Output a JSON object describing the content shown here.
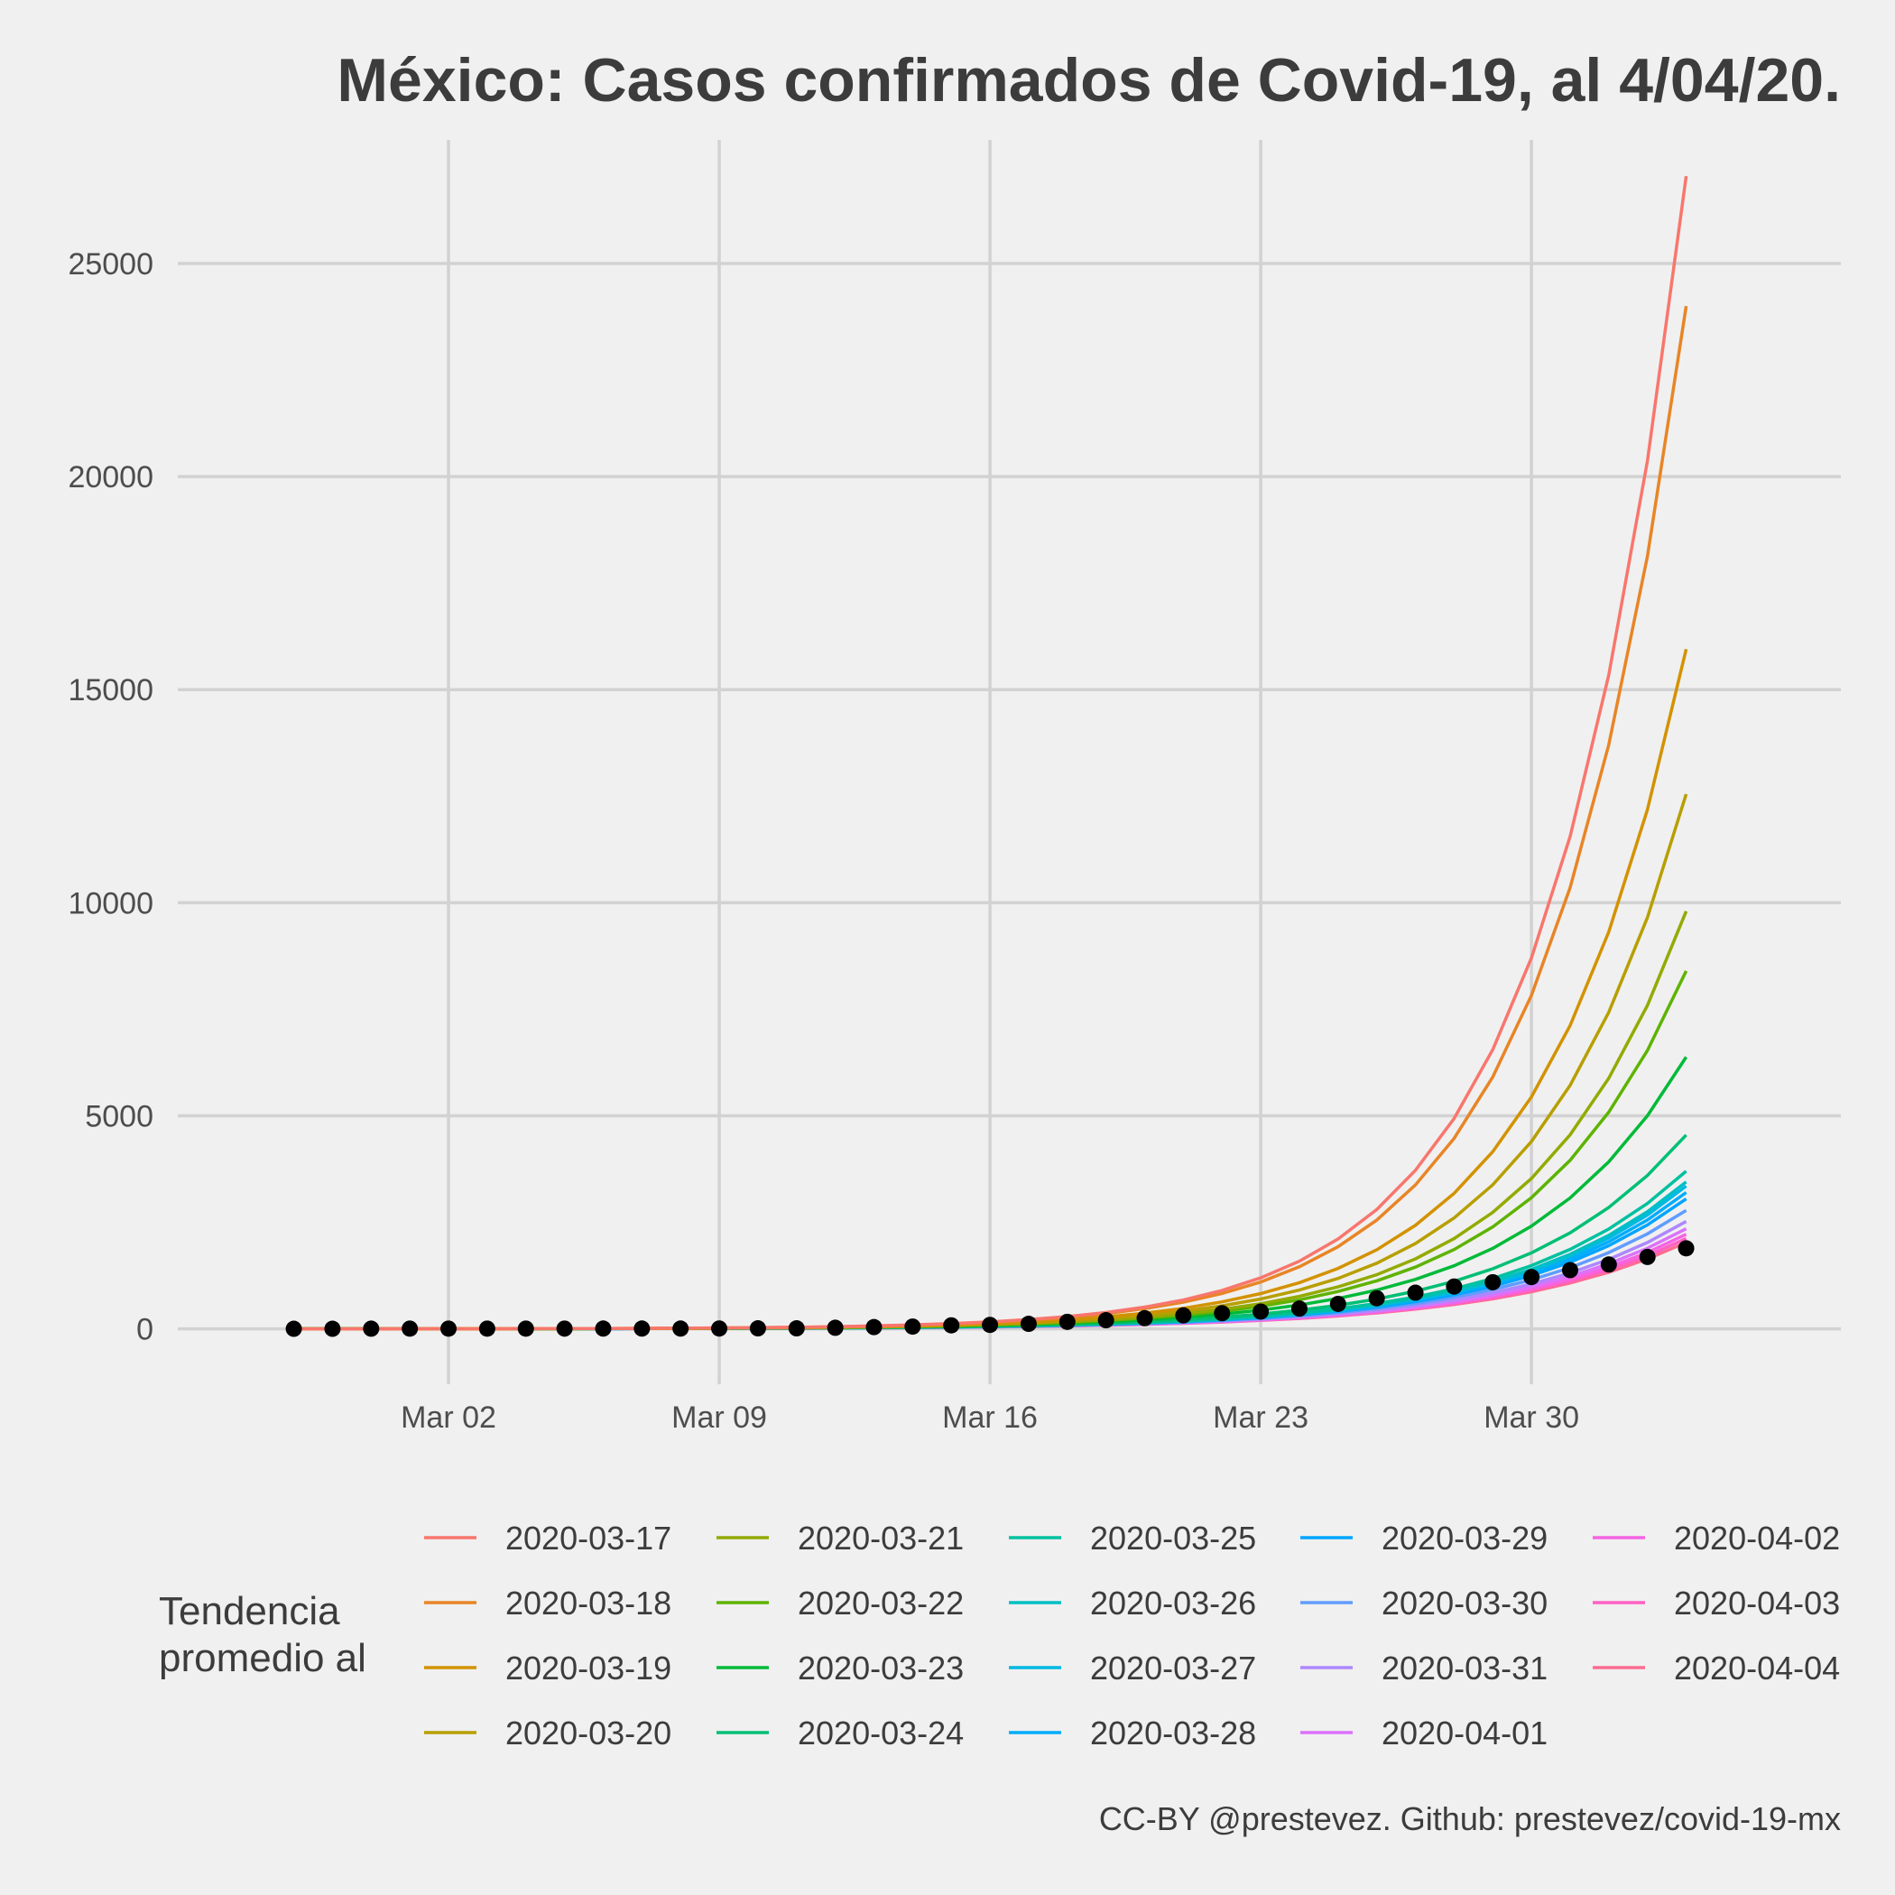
{
  "chart_data": {
    "type": "line",
    "title": "México: Casos confirmados de Covid-19, al 4/04/20.",
    "caption": "CC-BY @prestevez. Github: prestevez/covid-19-mx",
    "x_start": "2020-02-27",
    "x_end": "2020-04-04",
    "xlim": [
      "2020-02-24",
      "2020-04-07"
    ],
    "ylim": [
      -1300,
      27900
    ],
    "y_ticks": [
      0,
      5000,
      10000,
      15000,
      20000,
      25000
    ],
    "y_tick_labels": [
      "0",
      "5000",
      "10000",
      "15000",
      "20000",
      "25000"
    ],
    "x_ticks": [
      "2020-03-02",
      "2020-03-09",
      "2020-03-16",
      "2020-03-23",
      "2020-03-30"
    ],
    "x_tick_labels": [
      "Mar 02",
      "Mar 09",
      "Mar 16",
      "Mar 23",
      "Mar 30"
    ],
    "grid": true,
    "legend_position": "bottom",
    "legend_title": [
      "Tendencia",
      "promedio al"
    ],
    "observed": {
      "name": "Casos confirmados",
      "color": "#000000",
      "values": [
        1,
        2,
        4,
        5,
        5,
        5,
        5,
        6,
        7,
        7,
        7,
        8,
        12,
        12,
        26,
        41,
        53,
        82,
        93,
        118,
        164,
        203,
        251,
        316,
        367,
        405,
        475,
        585,
        717,
        848,
        993,
        1094,
        1215,
        1378,
        1510,
        1688,
        1890
      ]
    },
    "series": [
      {
        "name": "2020-03-17",
        "color": "#F8766D",
        "final": 27050
      },
      {
        "name": "2020-03-18",
        "color": "#E88526",
        "final": 24000
      },
      {
        "name": "2020-03-19",
        "color": "#D39200",
        "final": 15950
      },
      {
        "name": "2020-03-20",
        "color": "#B79F00",
        "final": 12550
      },
      {
        "name": "2020-03-21",
        "color": "#93AA00",
        "final": 9800
      },
      {
        "name": "2020-03-22",
        "color": "#5EB300",
        "final": 8400
      },
      {
        "name": "2020-03-23",
        "color": "#00BA38",
        "final": 6380
      },
      {
        "name": "2020-03-24",
        "color": "#00BF74",
        "final": 4550
      },
      {
        "name": "2020-03-25",
        "color": "#00C19F",
        "final": 3700
      },
      {
        "name": "2020-03-26",
        "color": "#00BFC4",
        "final": 3450
      },
      {
        "name": "2020-03-27",
        "color": "#00B9E3",
        "final": 3350
      },
      {
        "name": "2020-03-28",
        "color": "#00ADFA",
        "final": 3200
      },
      {
        "name": "2020-03-29",
        "color": "#00A5FF",
        "final": 3050
      },
      {
        "name": "2020-03-30",
        "color": "#619CFF",
        "final": 2780
      },
      {
        "name": "2020-03-31",
        "color": "#AE87FF",
        "final": 2520
      },
      {
        "name": "2020-04-01",
        "color": "#DB72FB",
        "final": 2350
      },
      {
        "name": "2020-04-02",
        "color": "#F564E3",
        "final": 2220
      },
      {
        "name": "2020-04-03",
        "color": "#FF61C3",
        "final": 2120
      },
      {
        "name": "2020-04-04",
        "color": "#FF6C91",
        "final": 2030
      }
    ]
  },
  "legend_order": [
    "2020-03-17",
    "2020-03-18",
    "2020-03-19",
    "2020-03-20",
    "2020-03-21",
    "2020-03-22",
    "2020-03-23",
    "2020-03-24",
    "2020-03-25",
    "2020-03-26",
    "2020-03-27",
    "2020-03-28",
    "2020-03-29",
    "2020-03-30",
    "2020-03-31",
    "2020-04-01",
    "2020-04-02",
    "2020-04-03",
    "2020-04-04"
  ]
}
